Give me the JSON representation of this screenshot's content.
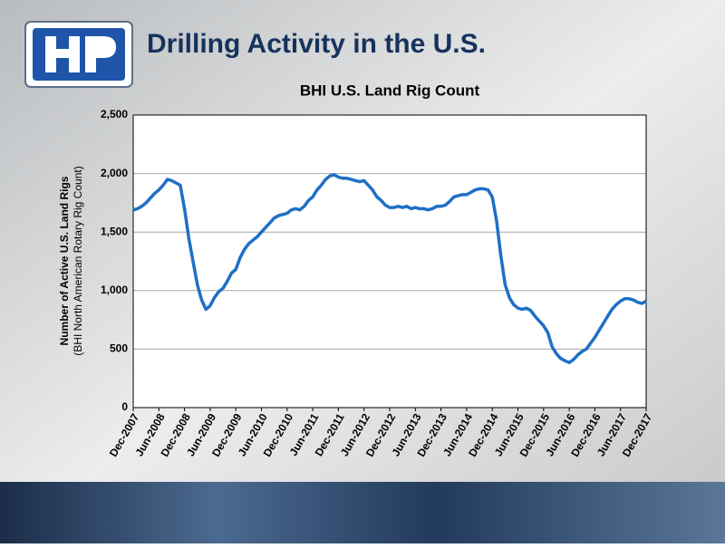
{
  "slide_title": "Drilling Activity in the U.S.",
  "chart_data": {
    "type": "line",
    "title": "BHI U.S. Land Rig Count",
    "ylabel": [
      "Number of Active U.S. Land Rigs",
      "(BHI North American Rotary Rig Count)"
    ],
    "categories": [
      "Dec-2007",
      null,
      null,
      null,
      null,
      null,
      "Jun-2008",
      null,
      null,
      null,
      null,
      null,
      "Dec-2008",
      null,
      null,
      null,
      null,
      null,
      "Jun-2009",
      null,
      null,
      null,
      null,
      null,
      "Dec-2009",
      null,
      null,
      null,
      null,
      null,
      "Jun-2010",
      null,
      null,
      null,
      null,
      null,
      "Dec-2010",
      null,
      null,
      null,
      null,
      null,
      "Jun-2011",
      null,
      null,
      null,
      null,
      null,
      "Dec-2011",
      null,
      null,
      null,
      null,
      null,
      "Jun-2012",
      null,
      null,
      null,
      null,
      null,
      "Dec-2012",
      null,
      null,
      null,
      null,
      null,
      "Jun-2013",
      null,
      null,
      null,
      null,
      null,
      "Dec-2013",
      null,
      null,
      null,
      null,
      null,
      "Jun-2014",
      null,
      null,
      null,
      null,
      null,
      "Dec-2014",
      null,
      null,
      null,
      null,
      null,
      "Jun-2015",
      null,
      null,
      null,
      null,
      null,
      "Dec-2015",
      null,
      null,
      null,
      null,
      null,
      "Jun-2016",
      null,
      null,
      null,
      null,
      null,
      "Dec-2016",
      null,
      null,
      null,
      null,
      null,
      "Jun-2017",
      null,
      null,
      null,
      null,
      null,
      "Dec-2017"
    ],
    "values": [
      1690,
      1700,
      1720,
      1750,
      1790,
      1830,
      1860,
      1900,
      1950,
      1940,
      1920,
      1900,
      1700,
      1450,
      1250,
      1050,
      920,
      840,
      870,
      940,
      990,
      1020,
      1080,
      1150,
      1180,
      1280,
      1350,
      1400,
      1430,
      1460,
      1500,
      1540,
      1580,
      1620,
      1640,
      1650,
      1660,
      1690,
      1700,
      1690,
      1720,
      1770,
      1800,
      1860,
      1900,
      1950,
      1980,
      1990,
      1970,
      1960,
      1960,
      1950,
      1940,
      1930,
      1940,
      1900,
      1860,
      1800,
      1770,
      1730,
      1710,
      1710,
      1720,
      1710,
      1720,
      1700,
      1710,
      1700,
      1700,
      1690,
      1700,
      1720,
      1720,
      1730,
      1760,
      1800,
      1810,
      1820,
      1820,
      1840,
      1860,
      1870,
      1870,
      1860,
      1800,
      1600,
      1300,
      1050,
      940,
      880,
      850,
      840,
      850,
      830,
      780,
      740,
      700,
      640,
      520,
      460,
      420,
      400,
      385,
      410,
      450,
      480,
      500,
      550,
      600,
      660,
      720,
      780,
      840,
      880,
      910,
      930,
      930,
      920,
      900,
      890,
      910
    ],
    "color": "#1f6fc5",
    "ylim": [
      0,
      2500
    ],
    "yticks": [
      0,
      500,
      {
        "value": 1000,
        "label": "1,000"
      },
      {
        "value": 1500,
        "label": "1,500"
      },
      {
        "value": 2000,
        "label": "2,000"
      },
      {
        "value": 2500,
        "label": "2,500"
      }
    ],
    "grid": true
  }
}
